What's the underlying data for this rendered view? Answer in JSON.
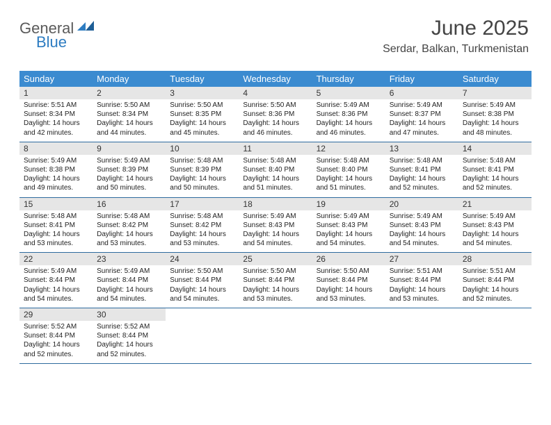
{
  "logo": {
    "word1": "General",
    "word2": "Blue",
    "accent": "#2d7cc1",
    "gray": "#5a5a5a"
  },
  "title": "June 2025",
  "location": "Serdar, Balkan, Turkmenistan",
  "colors": {
    "header_bg": "#3b8bd0",
    "header_text": "#ffffff",
    "daynum_bg": "#e6e6e6",
    "divider": "#2d6a9e",
    "body_text": "#222222"
  },
  "font": {
    "title_size": 30,
    "location_size": 16,
    "dow_size": 13,
    "daynum_size": 12,
    "body_size": 10
  },
  "days_of_week": [
    "Sunday",
    "Monday",
    "Tuesday",
    "Wednesday",
    "Thursday",
    "Friday",
    "Saturday"
  ],
  "days": [
    {
      "n": 1,
      "sunrise": "5:51 AM",
      "sunset": "8:34 PM",
      "daylight": "14 hours and 42 minutes."
    },
    {
      "n": 2,
      "sunrise": "5:50 AM",
      "sunset": "8:34 PM",
      "daylight": "14 hours and 44 minutes."
    },
    {
      "n": 3,
      "sunrise": "5:50 AM",
      "sunset": "8:35 PM",
      "daylight": "14 hours and 45 minutes."
    },
    {
      "n": 4,
      "sunrise": "5:50 AM",
      "sunset": "8:36 PM",
      "daylight": "14 hours and 46 minutes."
    },
    {
      "n": 5,
      "sunrise": "5:49 AM",
      "sunset": "8:36 PM",
      "daylight": "14 hours and 46 minutes."
    },
    {
      "n": 6,
      "sunrise": "5:49 AM",
      "sunset": "8:37 PM",
      "daylight": "14 hours and 47 minutes."
    },
    {
      "n": 7,
      "sunrise": "5:49 AM",
      "sunset": "8:38 PM",
      "daylight": "14 hours and 48 minutes."
    },
    {
      "n": 8,
      "sunrise": "5:49 AM",
      "sunset": "8:38 PM",
      "daylight": "14 hours and 49 minutes."
    },
    {
      "n": 9,
      "sunrise": "5:49 AM",
      "sunset": "8:39 PM",
      "daylight": "14 hours and 50 minutes."
    },
    {
      "n": 10,
      "sunrise": "5:48 AM",
      "sunset": "8:39 PM",
      "daylight": "14 hours and 50 minutes."
    },
    {
      "n": 11,
      "sunrise": "5:48 AM",
      "sunset": "8:40 PM",
      "daylight": "14 hours and 51 minutes."
    },
    {
      "n": 12,
      "sunrise": "5:48 AM",
      "sunset": "8:40 PM",
      "daylight": "14 hours and 51 minutes."
    },
    {
      "n": 13,
      "sunrise": "5:48 AM",
      "sunset": "8:41 PM",
      "daylight": "14 hours and 52 minutes."
    },
    {
      "n": 14,
      "sunrise": "5:48 AM",
      "sunset": "8:41 PM",
      "daylight": "14 hours and 52 minutes."
    },
    {
      "n": 15,
      "sunrise": "5:48 AM",
      "sunset": "8:41 PM",
      "daylight": "14 hours and 53 minutes."
    },
    {
      "n": 16,
      "sunrise": "5:48 AM",
      "sunset": "8:42 PM",
      "daylight": "14 hours and 53 minutes."
    },
    {
      "n": 17,
      "sunrise": "5:48 AM",
      "sunset": "8:42 PM",
      "daylight": "14 hours and 53 minutes."
    },
    {
      "n": 18,
      "sunrise": "5:49 AM",
      "sunset": "8:43 PM",
      "daylight": "14 hours and 54 minutes."
    },
    {
      "n": 19,
      "sunrise": "5:49 AM",
      "sunset": "8:43 PM",
      "daylight": "14 hours and 54 minutes."
    },
    {
      "n": 20,
      "sunrise": "5:49 AM",
      "sunset": "8:43 PM",
      "daylight": "14 hours and 54 minutes."
    },
    {
      "n": 21,
      "sunrise": "5:49 AM",
      "sunset": "8:43 PM",
      "daylight": "14 hours and 54 minutes."
    },
    {
      "n": 22,
      "sunrise": "5:49 AM",
      "sunset": "8:44 PM",
      "daylight": "14 hours and 54 minutes."
    },
    {
      "n": 23,
      "sunrise": "5:49 AM",
      "sunset": "8:44 PM",
      "daylight": "14 hours and 54 minutes."
    },
    {
      "n": 24,
      "sunrise": "5:50 AM",
      "sunset": "8:44 PM",
      "daylight": "14 hours and 54 minutes."
    },
    {
      "n": 25,
      "sunrise": "5:50 AM",
      "sunset": "8:44 PM",
      "daylight": "14 hours and 53 minutes."
    },
    {
      "n": 26,
      "sunrise": "5:50 AM",
      "sunset": "8:44 PM",
      "daylight": "14 hours and 53 minutes."
    },
    {
      "n": 27,
      "sunrise": "5:51 AM",
      "sunset": "8:44 PM",
      "daylight": "14 hours and 53 minutes."
    },
    {
      "n": 28,
      "sunrise": "5:51 AM",
      "sunset": "8:44 PM",
      "daylight": "14 hours and 52 minutes."
    },
    {
      "n": 29,
      "sunrise": "5:52 AM",
      "sunset": "8:44 PM",
      "daylight": "14 hours and 52 minutes."
    },
    {
      "n": 30,
      "sunrise": "5:52 AM",
      "sunset": "8:44 PM",
      "daylight": "14 hours and 52 minutes."
    }
  ],
  "labels": {
    "sunrise": "Sunrise:",
    "sunset": "Sunset:",
    "daylight": "Daylight:"
  },
  "start_weekday": 0,
  "total_cells": 35
}
